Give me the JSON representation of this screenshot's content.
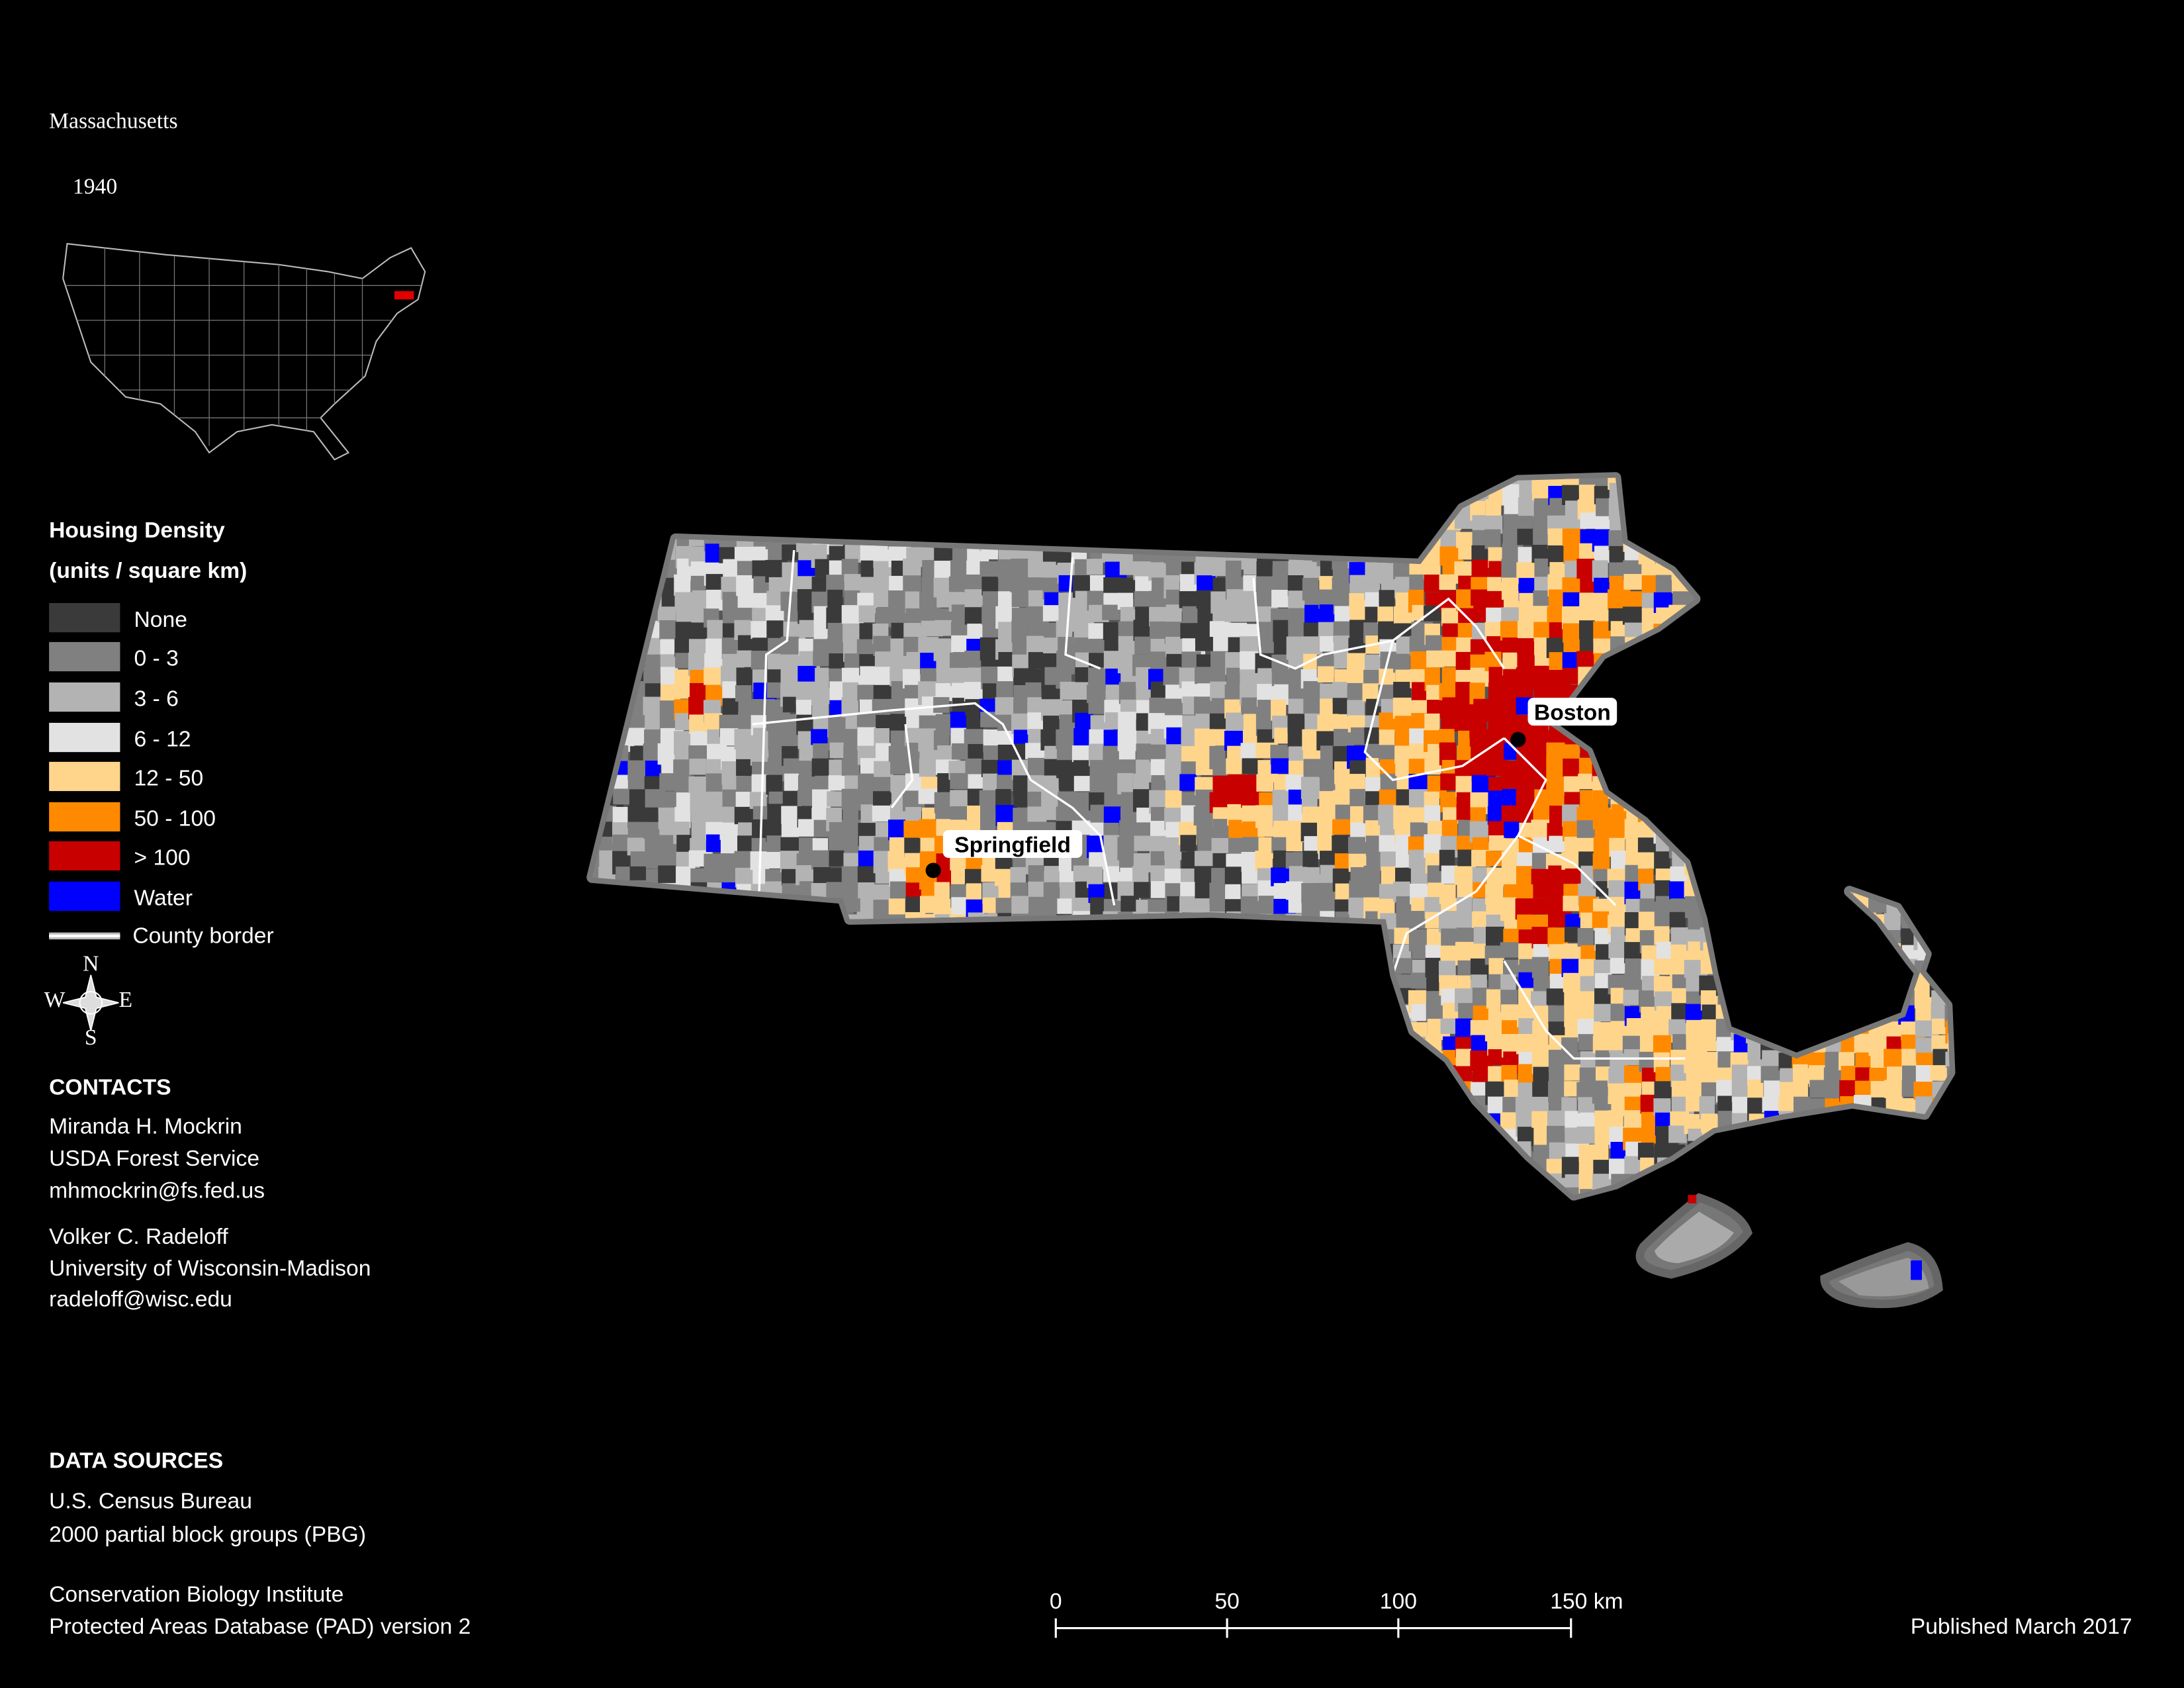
{
  "title": "Massachusetts",
  "subtitle": "1940",
  "legend": {
    "title": "Housing Density",
    "subtitle": "(units / square km)",
    "items": [
      {
        "label": "None",
        "color": "#3a3a3a"
      },
      {
        "label": "0 - 3",
        "color": "#808080"
      },
      {
        "label": "3 - 6",
        "color": "#b3b3b3"
      },
      {
        "label": "6 - 12",
        "color": "#e2e2e2"
      },
      {
        "label": "12 - 50",
        "color": "#ffd58c"
      },
      {
        "label": "50 - 100",
        "color": "#ff8a00"
      },
      {
        "label": "> 100",
        "color": "#c80000"
      },
      {
        "label": "Water",
        "color": "#0000ff"
      }
    ],
    "county_border": "County border"
  },
  "compass": {
    "n": "N",
    "s": "S",
    "e": "E",
    "w": "W"
  },
  "cities": [
    "Boston",
    "Springfield"
  ],
  "contacts": {
    "title": "CONTACTS",
    "people": [
      [
        "Miranda H. Mockrin",
        "USDA Forest Service",
        "mhmockrin@fs.fed.us"
      ],
      [
        "Volker C. Radeloff",
        "University of Wisconsin-Madison",
        "radeloff@wisc.edu"
      ]
    ]
  },
  "data_sources": {
    "title": "DATA SOURCES",
    "lines": [
      [
        "U.S. Census Bureau",
        "2000 partial block groups (PBG)"
      ],
      [
        "Conservation Biology Institute",
        "Protected Areas Database (PAD) version 2"
      ]
    ]
  },
  "scale_bar": [
    "0",
    "50",
    "100",
    "150 km"
  ],
  "published": "Published March 2017"
}
